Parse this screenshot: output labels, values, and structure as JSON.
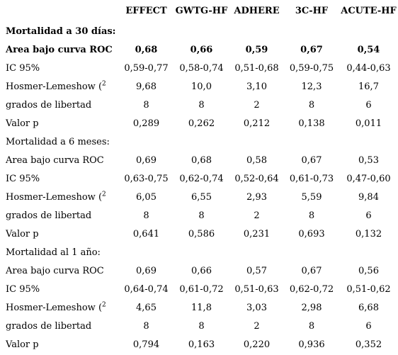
{
  "headers": [
    "",
    "EFFECT",
    "GWTG-HF",
    "ADHERE",
    "3C-HF",
    "ACUTE-HF"
  ],
  "rows": [
    {
      "label": "Mortalidad a 30 días:",
      "sup": "",
      "bold": true,
      "values": [
        "",
        "",
        "",
        "",
        ""
      ]
    },
    {
      "label": "Area bajo curva ROC",
      "sup": "",
      "bold": true,
      "values": [
        "0,68",
        "0,66",
        "0,59",
        "0,67",
        "0,54"
      ]
    },
    {
      "label": "IC 95%",
      "sup": "",
      "bold": false,
      "values": [
        "0,59-0,77",
        "0,58-0,74",
        "0,51-0,68",
        "0,59-0,75",
        "0,44-0,63"
      ]
    },
    {
      "label": "Hosmer-Lemeshow (",
      "sup": "2",
      "bold": false,
      "values": [
        "9,68",
        "10,0",
        "3,10",
        "12,3",
        "16,7"
      ]
    },
    {
      "label": "grados de libertad",
      "sup": "",
      "bold": false,
      "values": [
        "8",
        "8",
        "2",
        "8",
        "6"
      ]
    },
    {
      "label": "Valor p",
      "sup": "",
      "bold": false,
      "values": [
        "0,289",
        "0,262",
        "0,212",
        "0,138",
        "0,011"
      ]
    },
    {
      "label": "Mortalidad a 6 meses:",
      "sup": "",
      "bold": false,
      "values": [
        "",
        "",
        "",
        "",
        ""
      ]
    },
    {
      "label": "Area bajo curva ROC",
      "sup": "",
      "bold": false,
      "values": [
        "0,69",
        "0,68",
        "0,58",
        "0,67",
        "0,53"
      ]
    },
    {
      "label": "IC 95%",
      "sup": "",
      "bold": false,
      "values": [
        "0,63-0,75",
        "0,62-0,74",
        "0,52-0,64",
        "0,61-0,73",
        "0,47-0,60"
      ]
    },
    {
      "label": "Hosmer-Lemeshow (",
      "sup": "2",
      "bold": false,
      "values": [
        "6,05",
        "6,55",
        "2,93",
        "5,59",
        "9,84"
      ]
    },
    {
      "label": "grados de libertad",
      "sup": "",
      "bold": false,
      "values": [
        "8",
        "8",
        "2",
        "8",
        "6"
      ]
    },
    {
      "label": "Valor p",
      "sup": "",
      "bold": false,
      "values": [
        "0,641",
        "0,586",
        "0,231",
        "0,693",
        "0,132"
      ]
    },
    {
      "label": "Mortalidad al 1 año:",
      "sup": "",
      "bold": false,
      "values": [
        "",
        "",
        "",
        "",
        ""
      ]
    },
    {
      "label": "Area bajo curva ROC",
      "sup": "",
      "bold": false,
      "values": [
        "0,69",
        "0,66",
        "0,57",
        "0,67",
        "0,56"
      ]
    },
    {
      "label": "IC 95%",
      "sup": "",
      "bold": false,
      "values": [
        "0,64-0,74",
        "0,61-0,72",
        "0,51-0,63",
        "0,62-0,72",
        "0,51-0,62"
      ]
    },
    {
      "label": "Hosmer-Lemeshow (",
      "sup": "2",
      "bold": false,
      "values": [
        "4,65",
        "11,8",
        "3,03",
        "2,98",
        "6,68"
      ]
    },
    {
      "label": "grados de libertad",
      "sup": "",
      "bold": false,
      "values": [
        "8",
        "8",
        "2",
        "8",
        "6"
      ]
    },
    {
      "label": "Valor p",
      "sup": "",
      "bold": false,
      "values": [
        "0,794",
        "0,163",
        "0,220",
        "0,936",
        "0,352"
      ]
    }
  ]
}
